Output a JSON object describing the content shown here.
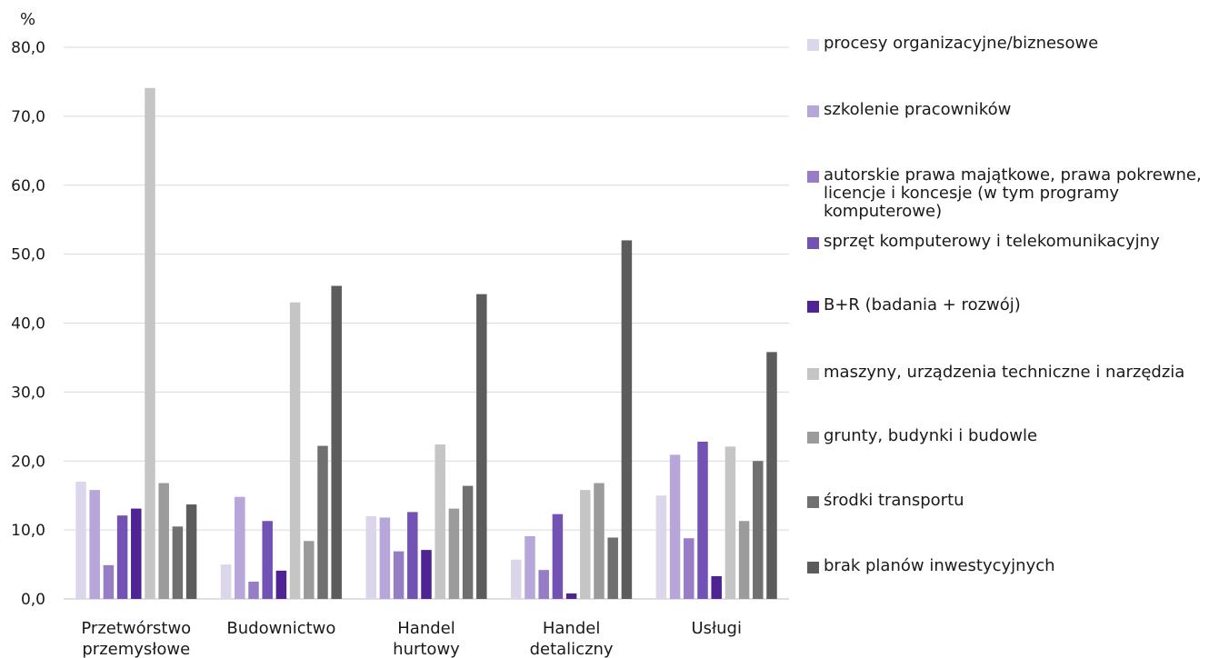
{
  "chart_data": {
    "type": "bar",
    "ylabel": "%",
    "ylim": [
      0,
      80
    ],
    "yticks": [
      "0,0",
      "10,0",
      "20,0",
      "30,0",
      "40,0",
      "50,0",
      "60,0",
      "70,0",
      "80,0"
    ],
    "grid": true,
    "legend_position": "right",
    "categories": [
      "Przetwórstwo przemysłowe",
      "Budownictwo",
      "Handel hurtowy",
      "Handel detaliczny",
      "Usługi"
    ],
    "series": [
      {
        "name": "procesy organizacyjne/biznesowe",
        "color": "#ddd5ec",
        "values": [
          17.0,
          5.0,
          12.0,
          5.7,
          15.0
        ]
      },
      {
        "name": "szkolenie pracowników",
        "color": "#b7a6d9",
        "values": [
          15.8,
          14.8,
          11.8,
          9.1,
          20.9
        ]
      },
      {
        "name": "autorskie prawa majątkowe, prawa pokrewne, licencje i koncesje (w tym programy komputerowe)",
        "color": "#967dc6",
        "values": [
          4.9,
          2.5,
          6.9,
          4.2,
          8.8
        ]
      },
      {
        "name": "sprzęt komputerowy i telekomunikacyjny",
        "color": "#7252b5",
        "values": [
          12.1,
          11.3,
          12.6,
          12.3,
          22.8
        ]
      },
      {
        "name": "B+R (badania + rozwój)",
        "color": "#4e2394",
        "values": [
          13.1,
          4.1,
          7.1,
          0.8,
          3.3
        ]
      },
      {
        "name": "maszyny, urządzenia techniczne i narzędzia",
        "color": "#c5c5c5",
        "values": [
          74.1,
          43.0,
          22.4,
          15.8,
          22.1
        ]
      },
      {
        "name": "grunty, budynki i budowle",
        "color": "#9b9b9b",
        "values": [
          16.8,
          8.4,
          13.1,
          16.8,
          11.3
        ]
      },
      {
        "name": "środki transportu",
        "color": "#707070",
        "values": [
          10.5,
          22.2,
          16.4,
          8.9,
          20.0
        ]
      },
      {
        "name": "brak planów inwestycyjnych",
        "color": "#5c5c5c",
        "values": [
          13.7,
          45.4,
          44.2,
          52.0,
          35.8
        ]
      }
    ]
  }
}
